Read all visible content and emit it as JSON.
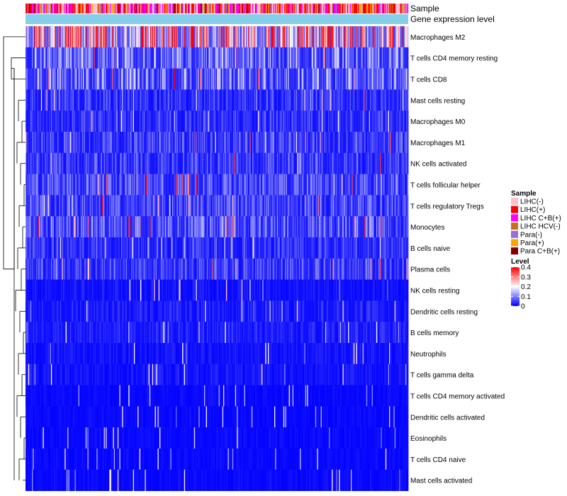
{
  "chart_data": {
    "type": "heatmap",
    "title": "",
    "annotation_tracks": [
      "Sample",
      "Gene expression level"
    ],
    "rows": [
      "Macrophages M2",
      "T cells CD4 memory resting",
      "T cells CD8",
      "Mast cells resting",
      "Macrophages M0",
      "Macrophages M1",
      "NK cells activated",
      "T cells follicular helper",
      "T cells regulatory  Tregs",
      "Monocytes",
      "B cells naive",
      "Plasma cells",
      "NK cells resting",
      "Dendritic cells resting",
      "B cells memory",
      "Neutrophils",
      "T cells gamma delta",
      "T cells CD4 memory activated",
      "Dendritic cells activated",
      "Eosinophils",
      "T cells CD4 naive",
      "Mast cells activated"
    ],
    "row_mean_level": [
      0.27,
      0.1,
      0.1,
      0.05,
      0.05,
      0.06,
      0.06,
      0.07,
      0.07,
      0.08,
      0.05,
      0.06,
      0.02,
      0.03,
      0.03,
      0.02,
      0.02,
      0.01,
      0.01,
      0.01,
      0.01,
      0.01
    ],
    "n_columns": 420,
    "legend_sample": {
      "title": "Sample",
      "entries": [
        {
          "label": "LIHC(-)",
          "color": "#ffc0cb"
        },
        {
          "label": "LIHC(+)",
          "color": "#ff0000"
        },
        {
          "label": "LIHC C+B(+)",
          "color": "#ff00ff"
        },
        {
          "label": "LIHC HCV(-)",
          "color": "#d2691e"
        },
        {
          "label": "Para(-)",
          "color": "#9370db"
        },
        {
          "label": "Para(+)",
          "color": "#ffa500"
        },
        {
          "label": "Para C+B(+)",
          "color": "#800000"
        }
      ]
    },
    "legend_level": {
      "title": "Level",
      "ticks": [
        "0.4",
        "0.3",
        "0.2",
        "0.1",
        "0"
      ],
      "range": [
        0,
        0.4
      ],
      "colors": [
        "#0000ff",
        "#ffffff",
        "#ff0000"
      ]
    },
    "gene_expression_color": "#87ceeb"
  }
}
